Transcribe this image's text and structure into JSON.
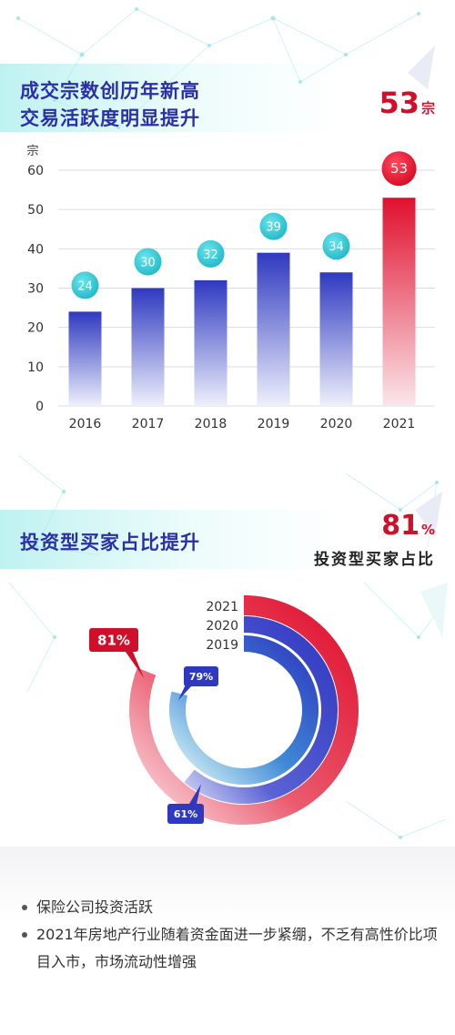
{
  "section1": {
    "title_line1": "成交宗数创历年新高",
    "title_line2": "交易活跃度明显提升",
    "highlight_value": "53",
    "highlight_unit": "宗"
  },
  "section2": {
    "title": "投资型买家占比提升",
    "highlight_value": "81",
    "highlight_unit": "%",
    "highlight_label": "投资型买家占比"
  },
  "chart_data": [
    {
      "type": "bar",
      "categories": [
        "2016",
        "2017",
        "2018",
        "2019",
        "2020",
        "2021"
      ],
      "values": [
        24,
        30,
        32,
        39,
        34,
        53
      ],
      "data_labels": [
        "24",
        "30",
        "32",
        "39",
        "34",
        "53"
      ],
      "ylabel": "宗",
      "ylim": [
        0,
        60
      ],
      "yticks": [
        "0",
        "10",
        "20",
        "30",
        "40",
        "50",
        "60"
      ],
      "grid": true,
      "colors": {
        "bar": "#3a44c8",
        "highlight_bar": "#e0102e",
        "label_bubble": "#2fc9d6"
      }
    },
    {
      "type": "pie",
      "series": [
        {
          "name": "2021",
          "value": 81,
          "label": "81%",
          "color": "#e0102e"
        },
        {
          "name": "2020",
          "value": 61,
          "label": "61%",
          "color": "#3a44c8"
        },
        {
          "name": "2019",
          "value": 79,
          "label": "79%",
          "color": "#3a44c8"
        }
      ],
      "unit_suffix": "%"
    }
  ],
  "bullets": [
    "保险公司投资活跃",
    "2021年房地产行业随着资金面进一步紧绷，不乏有高性价比项目入市，市场流动性增强"
  ]
}
